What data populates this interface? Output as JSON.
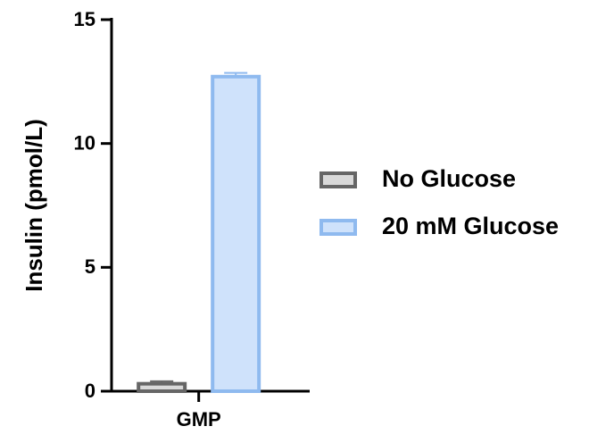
{
  "chart_data": {
    "type": "bar",
    "y_label": "Insulin (pmol/L)",
    "categories": [
      "GMP"
    ],
    "series": [
      {
        "name": "No Glucose",
        "color": "#d9d9d9",
        "edgecolor": "#666666",
        "values": [
          0.3
        ],
        "errors": [
          0.1
        ]
      },
      {
        "name": "20 mM Glucose",
        "color": "#cfe2fb",
        "edgecolor": "#8fbaef",
        "values": [
          12.7
        ],
        "errors": [
          0.15
        ]
      }
    ],
    "ylim": [
      0,
      15
    ],
    "yticks": [
      0,
      5,
      10,
      15
    ],
    "grid": false
  }
}
